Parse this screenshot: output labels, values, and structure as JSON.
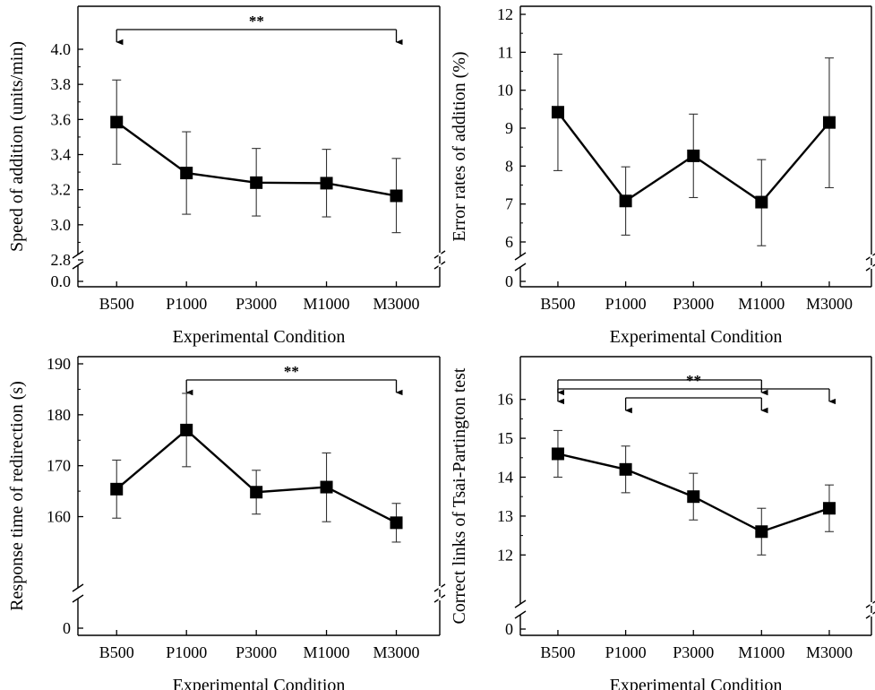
{
  "chart_data": [
    {
      "type": "line",
      "categories": [
        "B500",
        "P1000",
        "P3000",
        "M1000",
        "M3000"
      ],
      "series": [
        {
          "values": [
            3.585,
            3.295,
            3.24,
            3.237,
            3.165
          ],
          "error_low": [
            3.345,
            3.06,
            3.05,
            3.045,
            2.955
          ],
          "error_high": [
            3.825,
            3.53,
            3.435,
            3.43,
            3.378
          ]
        }
      ],
      "xlabel": "Experimental Condition",
      "ylabel": "Speed of addition (units/min)",
      "yticks": [
        "0.0",
        "2.8",
        "3.0",
        "3.2",
        "3.4",
        "3.6",
        "3.8",
        "4.0"
      ],
      "ylim": [
        2.8,
        4.0
      ],
      "axis_break": true,
      "significance": [
        {
          "from": "B500",
          "to": "M3000",
          "label": "**"
        }
      ]
    },
    {
      "type": "line",
      "categories": [
        "B500",
        "P1000",
        "P3000",
        "M1000",
        "M3000"
      ],
      "series": [
        {
          "values": [
            9.42,
            7.08,
            8.27,
            7.05,
            9.15
          ],
          "error_low": [
            7.88,
            6.18,
            7.17,
            5.9,
            7.43
          ],
          "error_high": [
            10.95,
            7.98,
            9.37,
            8.17,
            10.85
          ]
        }
      ],
      "xlabel": "Experimental Condition",
      "ylabel": "Error rates of addition (%)",
      "yticks": [
        "0",
        "6",
        "7",
        "8",
        "9",
        "10",
        "11",
        "12"
      ],
      "ylim": [
        6,
        12
      ],
      "axis_break": true,
      "significance": []
    },
    {
      "type": "line",
      "categories": [
        "B500",
        "P1000",
        "P3000",
        "M1000",
        "M3000"
      ],
      "series": [
        {
          "values": [
            165.4,
            177.0,
            164.8,
            165.8,
            158.8
          ],
          "error_low": [
            159.7,
            169.8,
            160.5,
            159.0,
            155.0
          ],
          "error_high": [
            171.1,
            184.2,
            169.1,
            172.5,
            162.6
          ]
        }
      ],
      "xlabel": "Experimental Condition",
      "ylabel": "Response time of redirection (s)",
      "yticks": [
        "0",
        "160",
        "170",
        "180",
        "190"
      ],
      "ylim": [
        152,
        190
      ],
      "axis_break": true,
      "significance": [
        {
          "from": "P1000",
          "to": "M3000",
          "label": "**"
        }
      ]
    },
    {
      "type": "line",
      "categories": [
        "B500",
        "P1000",
        "P3000",
        "M1000",
        "M3000"
      ],
      "series": [
        {
          "values": [
            14.6,
            14.2,
            13.5,
            12.6,
            13.2
          ],
          "error_low": [
            14.0,
            13.6,
            12.9,
            12.0,
            12.6
          ],
          "error_high": [
            15.2,
            14.8,
            14.1,
            13.2,
            13.8
          ]
        }
      ],
      "xlabel": "Experimental Condition",
      "ylabel": "Correct links of Tsai-Partington test",
      "yticks": [
        "0",
        "12",
        "13",
        "14",
        "15",
        "16"
      ],
      "ylim": [
        11.5,
        16.5
      ],
      "axis_break": true,
      "significance": [
        {
          "from": "B500",
          "to": "M1000",
          "label": ""
        },
        {
          "from": "B500",
          "to": "M3000",
          "label": "**"
        },
        {
          "from": "P1000",
          "to": "M1000",
          "label": ""
        }
      ]
    }
  ]
}
